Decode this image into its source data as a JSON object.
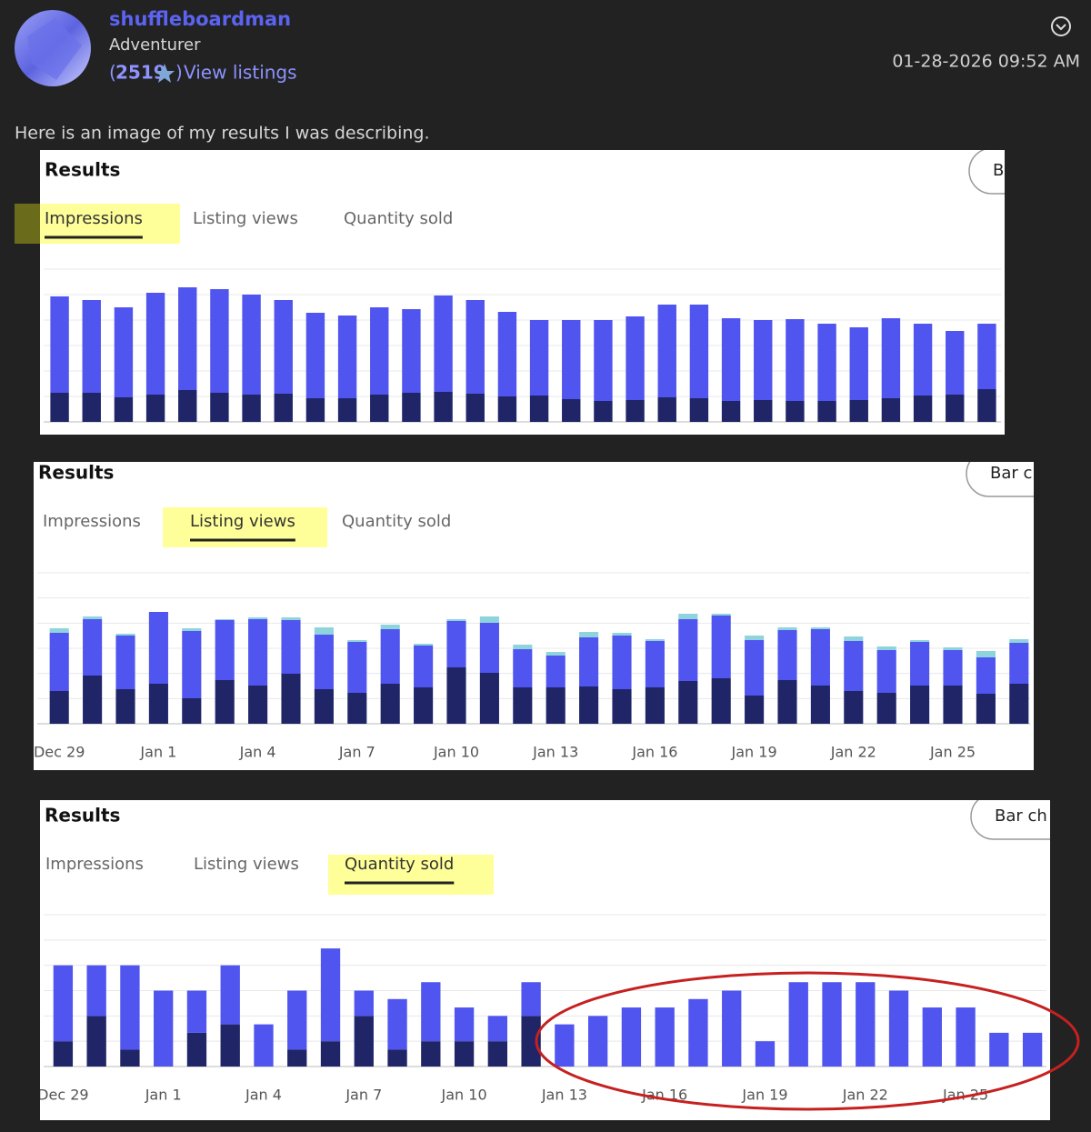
{
  "post": {
    "author": "shuffleboardman",
    "rank": "Adventurer",
    "feedback_open": "(",
    "feedback_score": "2519",
    "feedback_close": ")",
    "listings_link": "View listings",
    "timestamp": "01-28-2026 09:52 AM",
    "body": "Here is an image of my results I was describing."
  },
  "chart_data": [
    {
      "type": "bar",
      "stacked": true,
      "title": "Results",
      "tabs": [
        "Impressions",
        "Listing views",
        "Quantity sold"
      ],
      "active_tab": 0,
      "button": "B",
      "grid": true,
      "ylim": [
        0,
        168
      ],
      "series": [
        {
          "color": "#1f2567",
          "values": [
            32,
            32,
            27,
            30,
            35,
            32,
            30,
            31,
            26,
            26,
            30,
            32,
            33,
            31,
            28,
            29,
            25,
            23,
            24,
            27,
            26,
            23,
            24,
            23,
            23,
            24,
            26,
            29,
            30,
            36
          ]
        },
        {
          "color": "#4f55ee",
          "values": [
            106,
            102,
            99,
            112,
            113,
            114,
            110,
            103,
            94,
            91,
            96,
            92,
            106,
            103,
            93,
            83,
            87,
            89,
            92,
            102,
            103,
            91,
            88,
            90,
            85,
            80,
            88,
            79,
            70,
            72
          ]
        }
      ]
    },
    {
      "type": "bar",
      "stacked": true,
      "title": "Results",
      "tabs": [
        "Impressions",
        "Listing views",
        "Quantity sold"
      ],
      "active_tab": 1,
      "button": "Bar c",
      "grid": true,
      "ylim": [
        0,
        166
      ],
      "categories": [
        "Dec 29",
        null,
        null,
        "Jan 1",
        null,
        null,
        "Jan 4",
        null,
        null,
        "Jan 7",
        null,
        null,
        "Jan 10",
        null,
        null,
        "Jan 13",
        null,
        null,
        "Jan 16",
        null,
        null,
        "Jan 19",
        null,
        null,
        "Jan 22",
        null,
        null,
        "Jan 25",
        null,
        null
      ],
      "series": [
        {
          "color": "#1f2567",
          "values": [
            36,
            53,
            38,
            44,
            28,
            48,
            42,
            55,
            38,
            34,
            44,
            40,
            62,
            56,
            40,
            40,
            41,
            38,
            40,
            47,
            50,
            31,
            48,
            42,
            36,
            34,
            42,
            42,
            33,
            44
          ]
        },
        {
          "color": "#4f55ee",
          "values": [
            64,
            62,
            59,
            79,
            74,
            66,
            73,
            59,
            60,
            56,
            60,
            46,
            51,
            55,
            42,
            35,
            54,
            59,
            51,
            68,
            69,
            61,
            55,
            62,
            55,
            47,
            48,
            39,
            40,
            45
          ]
        },
        {
          "color": "#8fd3dc",
          "values": [
            5,
            3,
            2,
            0,
            3,
            1,
            2,
            3,
            8,
            2,
            5,
            2,
            2,
            7,
            5,
            4,
            6,
            3,
            2,
            6,
            2,
            5,
            3,
            2,
            5,
            4,
            2,
            3,
            7,
            4
          ]
        }
      ]
    },
    {
      "type": "bar",
      "stacked": true,
      "title": "Results",
      "tabs": [
        "Impressions",
        "Listing views",
        "Quantity sold"
      ],
      "active_tab": 2,
      "button": "Bar ch",
      "grid": true,
      "ylim": [
        0,
        18
      ],
      "categories": [
        "Dec 29",
        null,
        null,
        "Jan 1",
        null,
        null,
        "Jan 4",
        null,
        null,
        "Jan 7",
        null,
        null,
        "Jan 10",
        null,
        null,
        "Jan 13",
        null,
        null,
        "Jan 16",
        null,
        null,
        "Jan 19",
        null,
        null,
        "Jan 22",
        null,
        null,
        "Jan 25",
        null,
        null
      ],
      "series": [
        {
          "color": "#1f2567",
          "values": [
            3,
            6,
            2,
            0,
            4,
            5,
            0,
            2,
            3,
            6,
            2,
            3,
            3,
            3,
            6,
            0,
            0,
            0,
            0,
            0,
            0,
            0,
            0,
            0,
            0,
            0,
            0,
            0,
            0,
            0
          ]
        },
        {
          "color": "#4f55ee",
          "values": [
            9,
            6,
            10,
            9,
            5,
            7,
            5,
            7,
            11,
            3,
            6,
            7,
            4,
            3,
            4,
            5,
            6,
            7,
            7,
            8,
            9,
            3,
            10,
            10,
            10,
            9,
            7,
            7,
            4,
            4
          ]
        }
      ]
    }
  ]
}
